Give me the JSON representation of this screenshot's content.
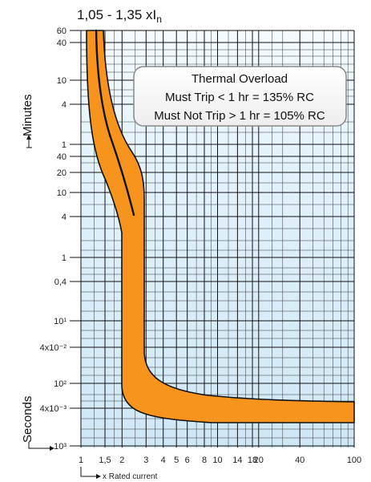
{
  "chart_data": {
    "type": "line",
    "title": "1,05 - 1,35 xI",
    "title_subscript": "n",
    "xlabel": "x Rated current",
    "ylabel_minutes": "Minutes",
    "ylabel_seconds": "Seconds",
    "x_ticks": [
      "1",
      "1,5",
      "2",
      "3",
      "4",
      "5",
      "6",
      "8",
      "10",
      "14",
      "18",
      "20",
      "40",
      "100"
    ],
    "x_tick_values": [
      1,
      1.5,
      2,
      3,
      4,
      5,
      6,
      8,
      10,
      14,
      18,
      20,
      40,
      100
    ],
    "xlim": [
      1,
      100
    ],
    "x_scale": "log",
    "y_ticks": [
      "60",
      "40",
      "10",
      "4",
      "1",
      "40",
      "20",
      "10",
      "4",
      "1",
      "0,4",
      "10¹",
      "4x10⁻²",
      "10²",
      "4x10⁻³",
      "10³"
    ],
    "grid": true,
    "annotation": {
      "line1": "Thermal Overload",
      "line2": "Must Trip < 1 hr = 135% RC",
      "line3": "Must Not Trip > 1 hr = 105% RC"
    },
    "colors": {
      "band_fill": "#f7941d",
      "band_edge": "#111111",
      "plot_bg": "#d8eef8",
      "grid": "#111111",
      "center_line": "#111111"
    }
  }
}
